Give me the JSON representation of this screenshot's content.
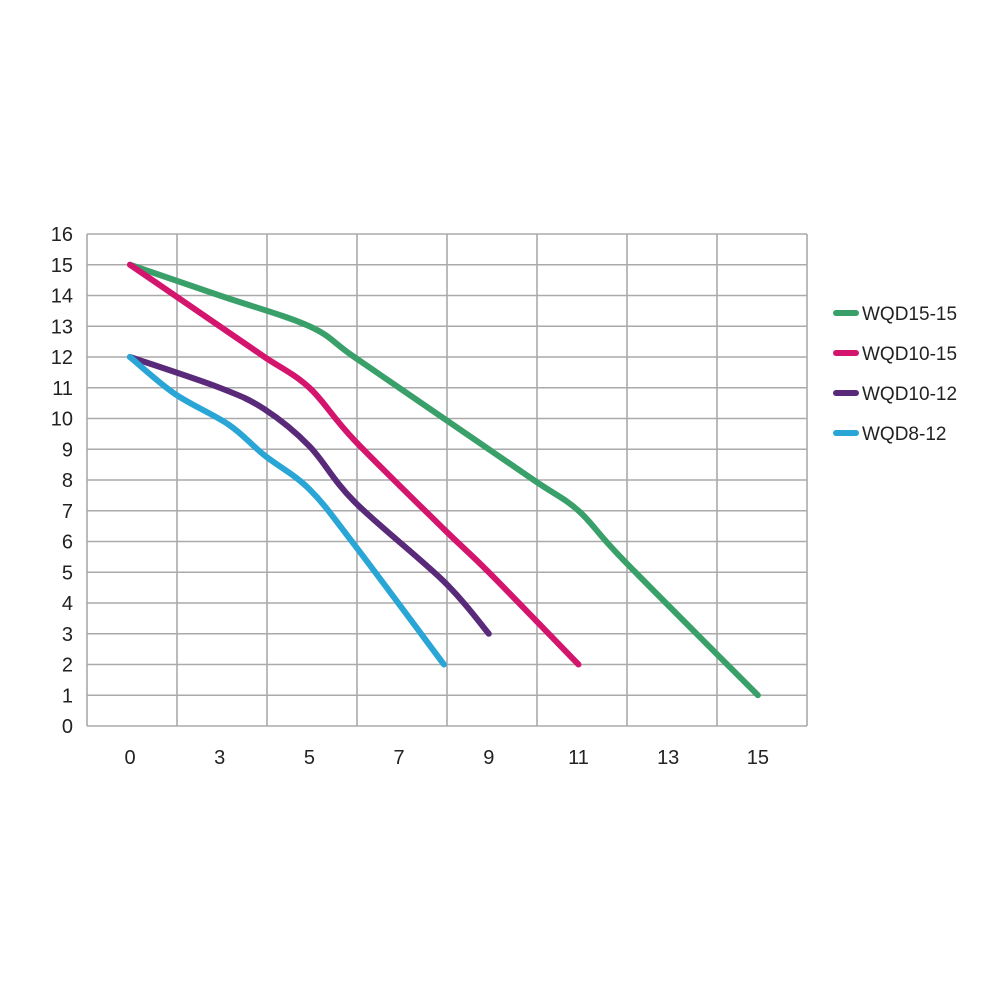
{
  "chart_data": {
    "type": "line",
    "title": "",
    "xlabel": "",
    "ylabel": "",
    "x_tick_labels": [
      "0",
      "3",
      "5",
      "7",
      "9",
      "11",
      "13",
      "15"
    ],
    "y_tick_labels": [
      "0",
      "1",
      "2",
      "3",
      "4",
      "5",
      "6",
      "7",
      "8",
      "9",
      "10",
      "11",
      "12",
      "13",
      "14",
      "15",
      "16"
    ],
    "ylim": [
      0,
      16
    ],
    "grid": true,
    "legend_position": "right",
    "series": [
      {
        "name": "WQD15-15",
        "color": "#3aa06a",
        "points": [
          [
            0,
            15
          ],
          [
            3,
            14
          ],
          [
            5,
            13
          ],
          [
            6,
            12
          ],
          [
            8,
            10
          ],
          [
            10,
            8
          ],
          [
            11,
            7
          ],
          [
            12,
            5.4
          ],
          [
            15,
            1
          ]
        ]
      },
      {
        "name": "WQD10-15",
        "color": "#d4156e",
        "points": [
          [
            0,
            15
          ],
          [
            3,
            13
          ],
          [
            4,
            12
          ],
          [
            5,
            11
          ],
          [
            6,
            9.3
          ],
          [
            8,
            6.4
          ],
          [
            9,
            5
          ],
          [
            11,
            2
          ]
        ]
      },
      {
        "name": "WQD10-12",
        "color": "#5a2a7a",
        "points": [
          [
            0,
            12
          ],
          [
            3,
            11
          ],
          [
            4,
            10.3
          ],
          [
            5,
            9.1
          ],
          [
            6,
            7.3
          ],
          [
            8,
            4.7
          ],
          [
            9,
            3
          ]
        ]
      },
      {
        "name": "WQD8-12",
        "color": "#2aa6d6",
        "points": [
          [
            0,
            12
          ],
          [
            1.5,
            10.8
          ],
          [
            3.2,
            9.8
          ],
          [
            4,
            8.8
          ],
          [
            5,
            7.7
          ],
          [
            6,
            5.9
          ],
          [
            8,
            2
          ]
        ]
      }
    ]
  }
}
